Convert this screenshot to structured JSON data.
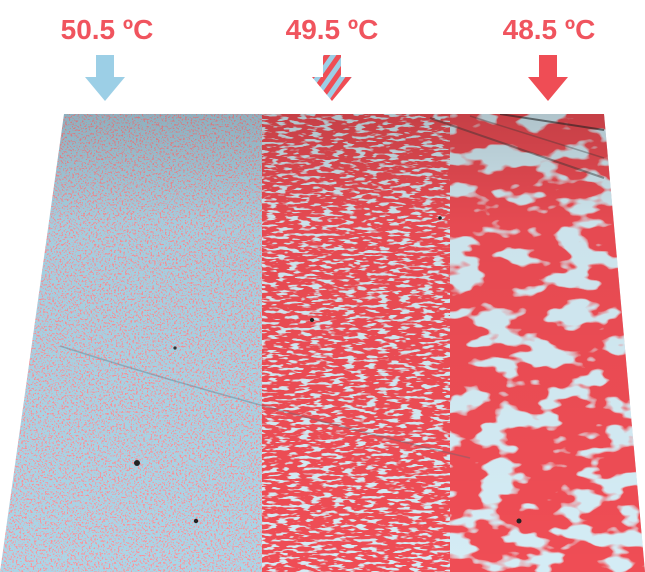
{
  "temperatures": [
    {
      "label": "50.5 ºC",
      "phase": "blue"
    },
    {
      "label": "49.5 ºC",
      "phase": "mixed"
    },
    {
      "label": "48.5 ºC",
      "phase": "red"
    }
  ],
  "colors": {
    "label_text": "#f0545e",
    "phase_blue": "#a9d6e8",
    "phase_red": "#ef4d55",
    "arrow_blue": "#9ccfe6",
    "arrow_red": "#ef4d55"
  },
  "icons": {
    "arrow_1": "down-arrow-blue-icon",
    "arrow_2": "down-arrow-striped-icon",
    "arrow_3": "down-arrow-red-icon"
  }
}
